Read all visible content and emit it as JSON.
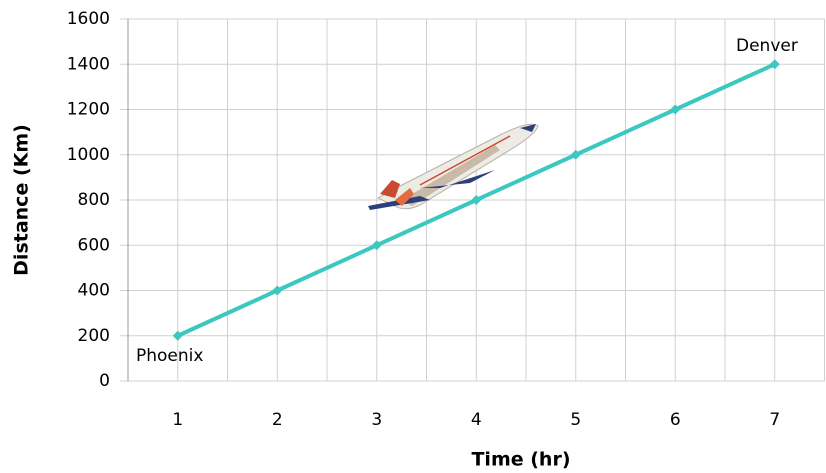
{
  "chart_data": {
    "type": "line",
    "x_label": "Time (hr)",
    "y_label": "Distance (Km)",
    "categories": [
      "1",
      "2",
      "3",
      "4",
      "5",
      "6",
      "7"
    ],
    "values": [
      200,
      400,
      600,
      800,
      1000,
      1200,
      1400
    ],
    "color": "#3cc8c0",
    "ylim": [
      0,
      1600
    ],
    "yticks": [
      0,
      200,
      400,
      600,
      800,
      1000,
      1200,
      1400,
      1600
    ],
    "grid": true,
    "annotations": [
      "Phoenix",
      "Denver"
    ]
  }
}
